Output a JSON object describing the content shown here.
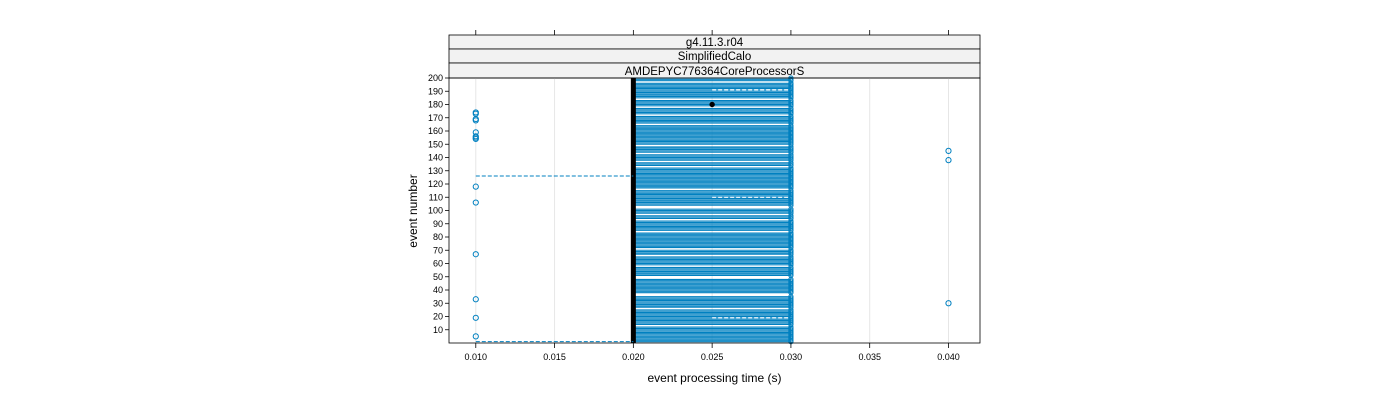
{
  "chart_data": {
    "type": "scatter",
    "strips": [
      "g4.11.3.r04",
      "SimplifiedCalo",
      "AMDEPYC776364CoreProcessorS"
    ],
    "xlabel": "event processing time (s)",
    "ylabel": "event number",
    "xlim": [
      0.0083,
      0.042
    ],
    "ylim": [
      0,
      200
    ],
    "x_ticks": [
      "0.010",
      "0.015",
      "0.020",
      "0.025",
      "0.030",
      "0.035",
      "0.040"
    ],
    "x_tick_values": [
      0.01,
      0.015,
      0.02,
      0.025,
      0.03,
      0.035,
      0.04
    ],
    "y_ticks": [
      10,
      20,
      30,
      40,
      50,
      60,
      70,
      80,
      90,
      100,
      110,
      120,
      130,
      140,
      150,
      160,
      170,
      180,
      190,
      200
    ],
    "grid": true,
    "colors": {
      "points": "#0080c0",
      "median_line": "#000000",
      "strip_bg": "#f2f2f2",
      "grid": "#e6e6e6"
    },
    "median_line_x": 0.02,
    "outliers_010": [
      5,
      19,
      33,
      67,
      106,
      118,
      154,
      155,
      156,
      159,
      168,
      169,
      173,
      174
    ],
    "outliers_040": [
      30,
      138,
      145
    ],
    "dashed_segments": [
      {
        "event": 1,
        "from": 0.01,
        "to": 0.02
      },
      {
        "event": 126,
        "from": 0.01,
        "to": 0.02
      },
      {
        "event": 19,
        "from": 0.025,
        "to": 0.03
      },
      {
        "event": 110,
        "from": 0.025,
        "to": 0.03
      },
      {
        "event": 191,
        "from": 0.025,
        "to": 0.03
      }
    ],
    "filled_point": {
      "x": 0.025,
      "event": 180
    },
    "gap_events": [
      13,
      26,
      36,
      37,
      49,
      50,
      58,
      66,
      71,
      84,
      93,
      97,
      102,
      103,
      116,
      133,
      137,
      143,
      149,
      165,
      172,
      178,
      184,
      197
    ]
  }
}
